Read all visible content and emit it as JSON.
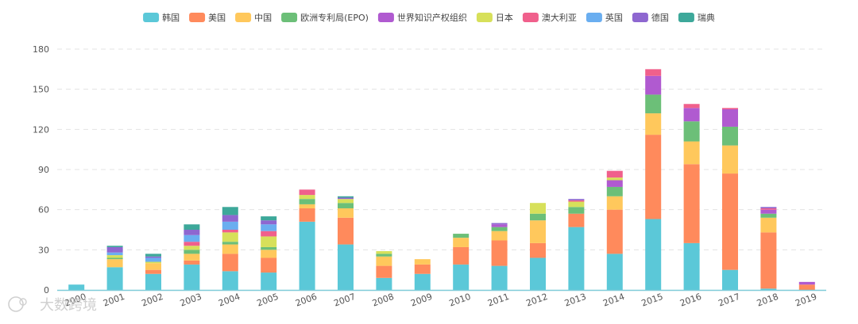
{
  "chart_data": {
    "type": "bar",
    "stacked": true,
    "title": "",
    "xlabel": "",
    "ylabel": "",
    "ylim": [
      0,
      180
    ],
    "yticks": [
      0,
      30,
      60,
      90,
      120,
      150,
      180
    ],
    "grid": true,
    "legend_position": "top",
    "categories": [
      "2000",
      "2001",
      "2002",
      "2003",
      "2004",
      "2005",
      "2006",
      "2007",
      "2008",
      "2009",
      "2010",
      "2011",
      "2012",
      "2013",
      "2014",
      "2015",
      "2016",
      "2017",
      "2018",
      "2019"
    ],
    "series": [
      {
        "name": "韩国",
        "color": "#5bc8d8",
        "values": [
          4,
          17,
          12,
          19,
          14,
          13,
          51,
          34,
          9,
          12,
          19,
          18,
          24,
          47,
          27,
          53,
          35,
          15,
          1,
          0
        ]
      },
      {
        "name": "美国",
        "color": "#ff8a5c",
        "values": [
          0,
          0,
          3,
          3,
          13,
          11,
          10,
          20,
          9,
          7,
          13,
          19,
          11,
          10,
          33,
          63,
          59,
          72,
          42,
          4
        ]
      },
      {
        "name": "中国",
        "color": "#ffc85c",
        "values": [
          0,
          6,
          5,
          5,
          7,
          6,
          3,
          7,
          7,
          4,
          7,
          7,
          17,
          0,
          10,
          16,
          17,
          21,
          11,
          0
        ]
      },
      {
        "name": "欧洲专利局(EPO)",
        "color": "#6cbf78",
        "values": [
          0,
          1,
          0,
          3,
          2,
          2,
          4,
          4,
          2,
          0,
          3,
          3,
          5,
          5,
          7,
          14,
          15,
          14,
          3,
          0
        ]
      },
      {
        "name": "世界知识产权组织",
        "color": "#b05ad0",
        "values": [
          0,
          0,
          0,
          0,
          0,
          0,
          0,
          0,
          0,
          0,
          0,
          2,
          0,
          0,
          5,
          14,
          10,
          13,
          3,
          2
        ]
      },
      {
        "name": "日本",
        "color": "#d7e05a",
        "values": [
          0,
          2,
          1,
          3,
          7,
          8,
          3,
          3,
          2,
          0,
          0,
          0,
          8,
          4,
          2,
          0,
          0,
          0,
          0,
          0
        ]
      },
      {
        "name": "澳大利亚",
        "color": "#f0608c",
        "values": [
          0,
          0,
          0,
          3,
          2,
          4,
          4,
          0,
          0,
          0,
          0,
          0,
          0,
          1,
          5,
          5,
          3,
          1,
          1,
          0
        ]
      },
      {
        "name": "英国",
        "color": "#6aaef0",
        "values": [
          0,
          2,
          3,
          5,
          6,
          5,
          0,
          0,
          0,
          0,
          0,
          0,
          0,
          0,
          0,
          0,
          0,
          0,
          0,
          0
        ]
      },
      {
        "name": "德国",
        "color": "#8e67d0",
        "values": [
          0,
          4,
          1,
          4,
          5,
          3,
          0,
          1,
          0,
          0,
          0,
          1,
          0,
          1,
          0,
          0,
          0,
          0,
          1,
          0
        ]
      },
      {
        "name": "瑞典",
        "color": "#3da89a",
        "values": [
          0,
          1,
          2,
          4,
          6,
          3,
          0,
          1,
          0,
          0,
          0,
          0,
          0,
          0,
          0,
          0,
          0,
          0,
          0,
          0
        ]
      }
    ]
  },
  "watermark": "大数跨境"
}
